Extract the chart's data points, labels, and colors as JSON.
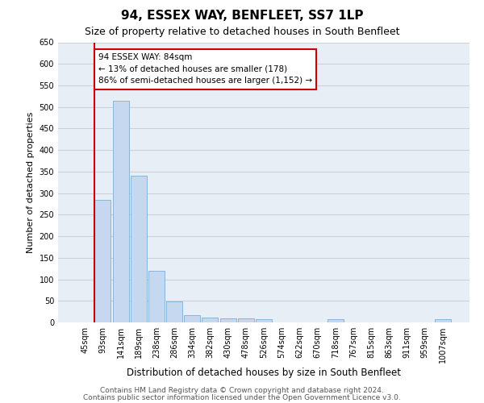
{
  "title": "94, ESSEX WAY, BENFLEET, SS7 1LP",
  "subtitle": "Size of property relative to detached houses in South Benfleet",
  "xlabel": "Distribution of detached houses by size in South Benfleet",
  "ylabel": "Number of detached properties",
  "categories": [
    "45sqm",
    "93sqm",
    "141sqm",
    "189sqm",
    "238sqm",
    "286sqm",
    "334sqm",
    "382sqm",
    "430sqm",
    "478sqm",
    "526sqm",
    "574sqm",
    "622sqm",
    "670sqm",
    "718sqm",
    "767sqm",
    "815sqm",
    "863sqm",
    "911sqm",
    "959sqm",
    "1007sqm"
  ],
  "values": [
    0,
    285,
    515,
    340,
    120,
    48,
    17,
    12,
    10,
    10,
    7,
    0,
    0,
    0,
    7,
    0,
    0,
    0,
    0,
    0,
    7
  ],
  "bar_color": "#c5d8f0",
  "bar_edge_color": "#8ab4d8",
  "annotation_box_text": "94 ESSEX WAY: 84sqm\n← 13% of detached houses are smaller (178)\n86% of semi-detached houses are larger (1,152) →",
  "annotation_box_color": "#ffffff",
  "annotation_box_edge_color": "#cc0000",
  "vline_color": "#cc0000",
  "ylim": [
    0,
    650
  ],
  "yticks": [
    0,
    50,
    100,
    150,
    200,
    250,
    300,
    350,
    400,
    450,
    500,
    550,
    600,
    650
  ],
  "grid_color": "#c8d0dc",
  "background_color": "#e8eef6",
  "footer_line1": "Contains HM Land Registry data © Crown copyright and database right 2024.",
  "footer_line2": "Contains public sector information licensed under the Open Government Licence v3.0.",
  "title_fontsize": 11,
  "subtitle_fontsize": 9,
  "xlabel_fontsize": 8.5,
  "ylabel_fontsize": 8,
  "tick_fontsize": 7,
  "annotation_fontsize": 7.5,
  "footer_fontsize": 6.5
}
